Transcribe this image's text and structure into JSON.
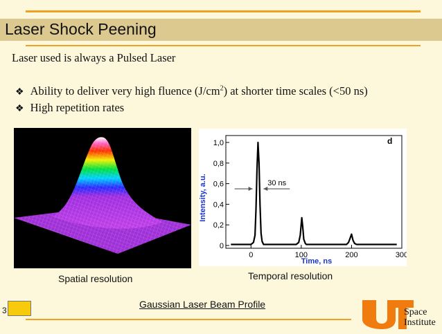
{
  "slide": {
    "title": "Laser Shock Peening",
    "intro": "Laser used is always a Pulsed Laser",
    "bullets": [
      {
        "before": "Ability to deliver very high fluence (J/cm",
        "sup": "2",
        "after": ") at shorter time scales (<50 ns)"
      },
      {
        "before": "High repetition rates",
        "sup": "",
        "after": ""
      }
    ],
    "bullet_icon": "diamond-bullet-icon",
    "left_caption": "Spatial resolution",
    "right_caption": "Temporal resolution",
    "footer_link": "Gaussian Laser Beam Profile",
    "slide_number": "3"
  },
  "logo": {
    "line1": "Space",
    "line2": "Institute",
    "brand_color": "#f07b0f"
  },
  "accent_colors": {
    "title_bar": "#dcc98f",
    "rule": "#f0a020",
    "number_box": "#f7ca0c"
  },
  "chart_data": {
    "type": "line",
    "panel_letter": "d",
    "xlabel": "Time, ns",
    "ylabel": "Intensity, a.u.",
    "xlim": [
      -50,
      300
    ],
    "ylim": [
      0,
      1.0
    ],
    "x_ticks": [
      "0",
      "100",
      "200",
      "300"
    ],
    "y_ticks": [
      "0",
      "0,2",
      "0,4",
      "0,6",
      "0,8",
      "1,0"
    ],
    "annotation": "30 ns",
    "series": [
      {
        "x": [
          -40,
          0,
          5,
          8,
          10,
          12,
          14,
          16,
          18,
          20,
          22,
          25,
          30,
          60,
          90,
          95,
          98,
          101,
          103,
          105,
          108,
          110,
          115,
          150,
          190,
          194,
          197,
          200,
          203,
          206,
          210,
          250,
          290
        ],
        "y": [
          0.01,
          0.01,
          0.03,
          0.1,
          0.35,
          0.75,
          1.0,
          0.8,
          0.4,
          0.12,
          0.04,
          0.01,
          0.01,
          0.01,
          0.01,
          0.03,
          0.1,
          0.27,
          0.18,
          0.06,
          0.02,
          0.01,
          0.01,
          0.01,
          0.01,
          0.03,
          0.07,
          0.11,
          0.05,
          0.02,
          0.01,
          0.01,
          0.01
        ]
      }
    ]
  }
}
